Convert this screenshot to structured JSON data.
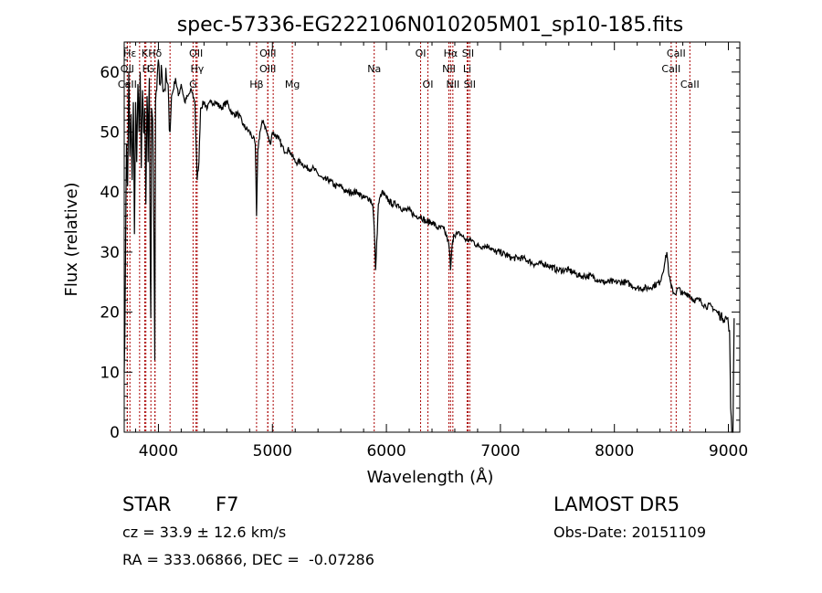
{
  "chart_data": {
    "type": "line",
    "title": "spec-57336-EG222106N010205M01_sp10-185.fits",
    "xlabel": "Wavelength (Å)",
    "ylabel": "Flux (relative)",
    "xlim": [
      3700,
      9100
    ],
    "ylim": [
      0,
      65
    ],
    "x_ticks": [
      4000,
      5000,
      6000,
      7000,
      8000,
      9000
    ],
    "y_ticks": [
      0,
      10,
      20,
      30,
      40,
      50,
      60
    ],
    "grid": false,
    "line_color": "#000000",
    "marker_color": "#aa0000",
    "spectrum": {
      "x": [
        3700,
        3710,
        3720,
        3730,
        3740,
        3750,
        3760,
        3770,
        3780,
        3790,
        3800,
        3810,
        3820,
        3830,
        3840,
        3850,
        3860,
        3870,
        3880,
        3890,
        3900,
        3910,
        3920,
        3930,
        3933,
        3940,
        3950,
        3960,
        3968,
        3975,
        3985,
        3995,
        4010,
        4030,
        4050,
        4070,
        4090,
        4102,
        4115,
        4130,
        4150,
        4175,
        4200,
        4230,
        4260,
        4290,
        4320,
        4340,
        4355,
        4370,
        4400,
        4430,
        4460,
        4500,
        4550,
        4600,
        4650,
        4700,
        4750,
        4800,
        4830,
        4850,
        4861,
        4872,
        4890,
        4920,
        4950,
        4980,
        5000,
        5050,
        5100,
        5150,
        5200,
        5250,
        5300,
        5350,
        5400,
        5450,
        5500,
        5550,
        5600,
        5650,
        5700,
        5750,
        5800,
        5850,
        5880,
        5893,
        5905,
        5930,
        5960,
        6000,
        6050,
        6100,
        6150,
        6200,
        6250,
        6300,
        6350,
        6400,
        6450,
        6500,
        6540,
        6555,
        6563,
        6572,
        6590,
        6620,
        6650,
        6700,
        6750,
        6800,
        6850,
        6900,
        6950,
        7000,
        7100,
        7200,
        7300,
        7400,
        7500,
        7600,
        7700,
        7800,
        7900,
        8000,
        8100,
        8200,
        8300,
        8400,
        8440,
        8460,
        8480,
        8500,
        8530,
        8560,
        8600,
        8650,
        8700,
        8750,
        8800,
        8850,
        8900,
        8950,
        8990,
        9000,
        9010,
        9020,
        9030,
        9040,
        9050
      ],
      "y": [
        10,
        25,
        48,
        41,
        60,
        46,
        53,
        42,
        55,
        33,
        55,
        45,
        58,
        50,
        60,
        44,
        57,
        50,
        54,
        38,
        56,
        45,
        59,
        25,
        19,
        54,
        52,
        33,
        12,
        55,
        57,
        61,
        58,
        60,
        57,
        59,
        55,
        50,
        56,
        57,
        59,
        56,
        58,
        55,
        56,
        57,
        55,
        42,
        45,
        54,
        55,
        54,
        55,
        55,
        54,
        55,
        53,
        53,
        51,
        50,
        49,
        48,
        36,
        47,
        50,
        52,
        50,
        48,
        50,
        49,
        47,
        47,
        45,
        45,
        44,
        44,
        43,
        42,
        42,
        41,
        41,
        40,
        40,
        40,
        39,
        39,
        38,
        34,
        27,
        38,
        40,
        39,
        38,
        38,
        37,
        37,
        36,
        36,
        35,
        35,
        34,
        34,
        32,
        30,
        27,
        30,
        33,
        33,
        33,
        32,
        32,
        31,
        31,
        31,
        30,
        30,
        29,
        29,
        28,
        28,
        27,
        27,
        26,
        26,
        25,
        25,
        25,
        24,
        24,
        25,
        28,
        30,
        26,
        24,
        23,
        24,
        23,
        23,
        22,
        22,
        21,
        21,
        20,
        19,
        19,
        18,
        17,
        4,
        0,
        0,
        19
      ]
    },
    "lines": [
      {
        "label": "Hε",
        "x": 3750,
        "row": 1
      },
      {
        "label": "K",
        "x": 3880,
        "row": 1
      },
      {
        "label": "Hδ",
        "x": 3970,
        "row": 1
      },
      {
        "label": "OII",
        "x": 4330,
        "row": 1
      },
      {
        "label": "OIII",
        "x": 4960,
        "row": 1
      },
      {
        "label": "OI",
        "x": 6300,
        "row": 1
      },
      {
        "label": "Hα",
        "x": 6563,
        "row": 1
      },
      {
        "label": "SII",
        "x": 6716,
        "row": 1
      },
      {
        "label": "CaII",
        "x": 8542,
        "row": 1
      },
      {
        "label": "OII",
        "x": 3727,
        "row": 2
      },
      {
        "label": "H",
        "x": 3890,
        "row": 2
      },
      {
        "label": "G",
        "x": 3934,
        "row": 2
      },
      {
        "label": "Hγ",
        "x": 4340,
        "row": 2
      },
      {
        "label": "OIII",
        "x": 4959,
        "row": 2
      },
      {
        "label": "Na",
        "x": 5893,
        "row": 2
      },
      {
        "label": "NII",
        "x": 6548,
        "row": 2
      },
      {
        "label": "Li",
        "x": 6708,
        "row": 2
      },
      {
        "label": "CaII",
        "x": 8498,
        "row": 2
      },
      {
        "label": "CaII",
        "x": 3727,
        "row": 3
      },
      {
        "label": "G",
        "x": 4304,
        "row": 3
      },
      {
        "label": "Hβ",
        "x": 4861,
        "row": 3
      },
      {
        "label": "Mg",
        "x": 5175,
        "row": 3
      },
      {
        "label": "OI",
        "x": 6364,
        "row": 3
      },
      {
        "label": "NII",
        "x": 6583,
        "row": 3
      },
      {
        "label": "SII",
        "x": 6731,
        "row": 3
      },
      {
        "label": "CaII",
        "x": 8662,
        "row": 3
      }
    ],
    "extra_marker_x": [
      3835,
      3970,
      4102,
      5007
    ]
  },
  "info": {
    "class": "STAR",
    "subclass": "F7",
    "survey": "LAMOST DR5",
    "cz": "cz = 33.9 ± 12.6 km/s",
    "obs_date": "Obs-Date: 20151109",
    "radec": "RA = 333.06866, DEC =  -0.07286"
  }
}
